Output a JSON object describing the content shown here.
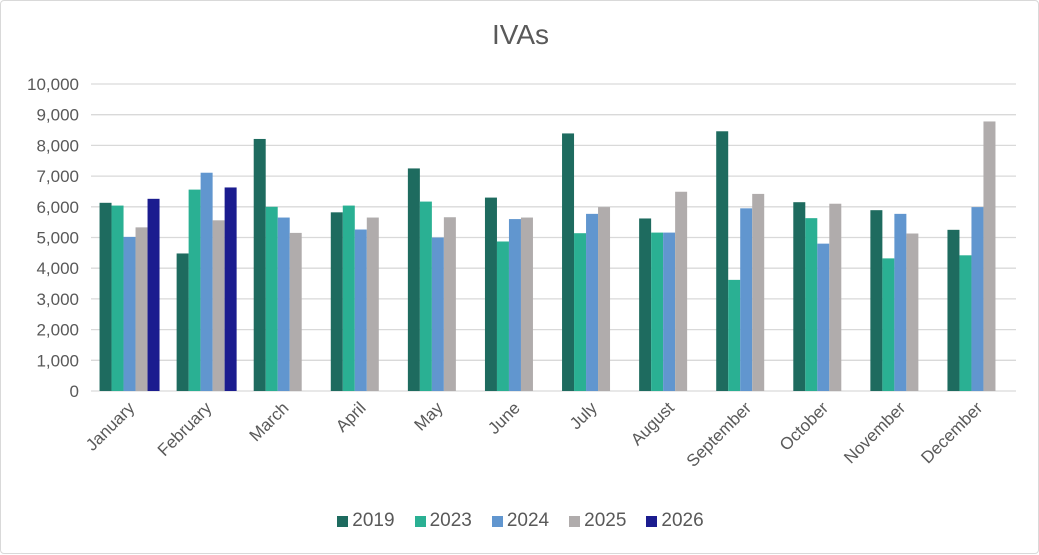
{
  "chart_data": {
    "type": "bar",
    "title": "IVAs",
    "categories": [
      "January",
      "February",
      "March",
      "April",
      "May",
      "June",
      "July",
      "August",
      "September",
      "October",
      "November",
      "December"
    ],
    "ylim": [
      0,
      10000
    ],
    "yticks": [
      "0",
      "1,000",
      "2,000",
      "3,000",
      "4,000",
      "5,000",
      "6,000",
      "7,000",
      "8,000",
      "9,000",
      "10,000"
    ],
    "grid": true,
    "legend_position": "bottom",
    "series": [
      {
        "name": "2019",
        "color": "#1e6b5f",
        "values": [
          6130,
          4480,
          8210,
          5820,
          7250,
          6300,
          8390,
          5620,
          8460,
          6150,
          5890,
          5250
        ]
      },
      {
        "name": "2023",
        "color": "#2ab093",
        "values": [
          6040,
          6560,
          6000,
          6040,
          6170,
          4870,
          5140,
          5160,
          3620,
          5630,
          4320,
          4420
        ]
      },
      {
        "name": "2024",
        "color": "#6196cf",
        "values": [
          5020,
          7110,
          5650,
          5260,
          5000,
          5600,
          5770,
          5160,
          5950,
          4800,
          5770,
          5990
        ]
      },
      {
        "name": "2025",
        "color": "#b0acac",
        "values": [
          5330,
          5560,
          5150,
          5650,
          5660,
          5650,
          5990,
          6490,
          6420,
          6100,
          5130,
          8780
        ]
      },
      {
        "name": "2026",
        "color": "#1b1c8f",
        "values": [
          6260,
          6630,
          null,
          null,
          null,
          null,
          null,
          null,
          null,
          null,
          null,
          null
        ]
      }
    ]
  }
}
